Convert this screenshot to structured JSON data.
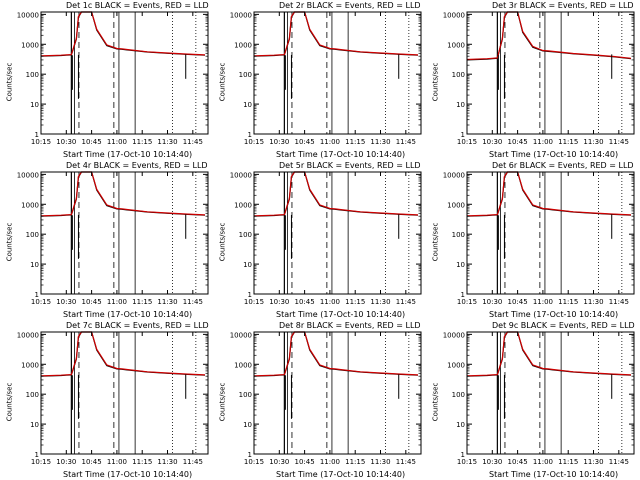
{
  "x_axis_title": "Start Time (17-Oct-10 10:14:40)",
  "y_axis_title": "Counts/sec",
  "x_ticks": [
    "10:15",
    "10:30",
    "10:45",
    "11:00",
    "11:15",
    "11:30",
    "11:45"
  ],
  "y_ticks": [
    "1",
    "10",
    "100",
    "1000",
    "10000"
  ],
  "colors": {
    "events": "#000000",
    "lld": "#cc0000",
    "axes": "#000000"
  },
  "chart_data": [
    {
      "type": "line",
      "title": "Det 1c BLACK = Events, RED = LLD",
      "xlim": [
        10.25,
        11.9
      ],
      "ylim": [
        1,
        12000
      ],
      "ylog": true,
      "series": [
        {
          "name": "Events",
          "x": [
            10.25,
            10.45,
            10.5,
            10.55,
            10.6,
            10.62,
            10.65,
            10.67,
            10.7,
            10.72,
            10.75,
            10.8,
            10.9,
            11.0,
            11.05,
            11.1,
            11.3,
            11.5,
            11.7,
            11.87
          ],
          "y": [
            400,
            420,
            430,
            440,
            1500,
            8000,
            12000,
            12000,
            12000,
            12000,
            12000,
            3000,
            900,
            700,
            680,
            650,
            550,
            500,
            460,
            430
          ]
        },
        {
          "name": "LLD",
          "x": [
            10.25,
            10.45,
            10.5,
            10.55,
            10.6,
            10.62,
            10.65,
            10.67,
            10.7,
            10.72,
            10.75,
            10.8,
            10.9,
            11.0,
            11.05,
            11.1,
            11.3,
            11.5,
            11.7,
            11.87
          ],
          "y": [
            410,
            430,
            440,
            450,
            1600,
            8500,
            12000,
            12000,
            12000,
            12000,
            12000,
            3200,
            950,
            720,
            700,
            670,
            560,
            510,
            470,
            440
          ]
        }
      ]
    },
    {
      "type": "line",
      "title": "Det 2r BLACK = Events, RED = LLD",
      "xlim": [
        10.25,
        11.9
      ],
      "ylim": [
        1,
        12000
      ],
      "ylog": true,
      "series": [
        {
          "name": "Events",
          "x": [
            10.25,
            10.45,
            10.5,
            10.55,
            10.6,
            10.62,
            10.65,
            10.67,
            10.7,
            10.72,
            10.75,
            10.8,
            10.9,
            11.0,
            11.05,
            11.1,
            11.3,
            11.5,
            11.7,
            11.87
          ],
          "y": [
            400,
            420,
            430,
            440,
            1500,
            8000,
            12000,
            12000,
            12000,
            12000,
            12000,
            3000,
            900,
            700,
            680,
            650,
            550,
            500,
            460,
            430
          ]
        },
        {
          "name": "LLD",
          "x": [
            10.25,
            10.45,
            10.5,
            10.55,
            10.6,
            10.62,
            10.65,
            10.67,
            10.7,
            10.72,
            10.75,
            10.8,
            10.9,
            11.0,
            11.05,
            11.1,
            11.3,
            11.5,
            11.7,
            11.87
          ],
          "y": [
            410,
            430,
            440,
            450,
            1600,
            8500,
            12000,
            12000,
            12000,
            12000,
            12000,
            3200,
            950,
            720,
            700,
            670,
            560,
            510,
            470,
            440
          ]
        }
      ]
    },
    {
      "type": "line",
      "title": "Det 3r BLACK = Events, RED = LLD",
      "xlim": [
        10.25,
        11.9
      ],
      "ylim": [
        1,
        12000
      ],
      "ylog": true,
      "series": [
        {
          "name": "Events",
          "x": [
            10.25,
            10.45,
            10.5,
            10.55,
            10.6,
            10.62,
            10.65,
            10.67,
            10.7,
            10.72,
            10.75,
            10.8,
            10.9,
            11.0,
            11.05,
            11.1,
            11.3,
            11.5,
            11.7,
            11.87
          ],
          "y": [
            300,
            320,
            330,
            340,
            1500,
            8000,
            12000,
            12000,
            12000,
            12000,
            12000,
            2500,
            800,
            600,
            580,
            560,
            480,
            430,
            380,
            330
          ]
        },
        {
          "name": "LLD",
          "x": [
            10.25,
            10.45,
            10.5,
            10.55,
            10.6,
            10.62,
            10.65,
            10.67,
            10.7,
            10.72,
            10.75,
            10.8,
            10.9,
            11.0,
            11.05,
            11.1,
            11.3,
            11.5,
            11.7,
            11.87
          ],
          "y": [
            310,
            330,
            340,
            350,
            1600,
            8500,
            12000,
            12000,
            12000,
            12000,
            12000,
            2700,
            850,
            620,
            600,
            580,
            490,
            440,
            390,
            340
          ]
        }
      ]
    },
    {
      "type": "line",
      "title": "Det 4r BLACK = Events, RED = LLD",
      "xlim": [
        10.25,
        11.9
      ],
      "ylim": [
        1,
        12000
      ],
      "ylog": true,
      "series": [
        {
          "name": "Events",
          "x": [
            10.25,
            10.45,
            10.5,
            10.55,
            10.6,
            10.62,
            10.65,
            10.67,
            10.7,
            10.72,
            10.75,
            10.8,
            10.9,
            11.0,
            11.05,
            11.1,
            11.3,
            11.5,
            11.7,
            11.87
          ],
          "y": [
            400,
            420,
            430,
            440,
            1500,
            8000,
            12000,
            12000,
            12000,
            12000,
            12000,
            3000,
            900,
            700,
            680,
            650,
            550,
            500,
            460,
            430
          ]
        },
        {
          "name": "LLD",
          "x": [
            10.25,
            10.45,
            10.5,
            10.55,
            10.6,
            10.62,
            10.65,
            10.67,
            10.7,
            10.72,
            10.75,
            10.8,
            10.9,
            11.0,
            11.05,
            11.1,
            11.3,
            11.5,
            11.7,
            11.87
          ],
          "y": [
            410,
            430,
            440,
            450,
            1600,
            8500,
            12000,
            12000,
            12000,
            12000,
            12000,
            3200,
            950,
            720,
            700,
            670,
            560,
            510,
            470,
            440
          ]
        }
      ]
    },
    {
      "type": "line",
      "title": "Det 5r BLACK = Events, RED = LLD",
      "xlim": [
        10.25,
        11.9
      ],
      "ylim": [
        1,
        12000
      ],
      "ylog": true,
      "series": [
        {
          "name": "Events",
          "x": [
            10.25,
            10.45,
            10.5,
            10.55,
            10.6,
            10.62,
            10.65,
            10.67,
            10.7,
            10.72,
            10.75,
            10.8,
            10.9,
            11.0,
            11.05,
            11.1,
            11.3,
            11.5,
            11.7,
            11.87
          ],
          "y": [
            400,
            420,
            430,
            440,
            1500,
            8000,
            12000,
            12000,
            12000,
            12000,
            12000,
            3000,
            900,
            700,
            680,
            650,
            550,
            500,
            460,
            430
          ]
        },
        {
          "name": "LLD",
          "x": [
            10.25,
            10.45,
            10.5,
            10.55,
            10.6,
            10.62,
            10.65,
            10.67,
            10.7,
            10.72,
            10.75,
            10.8,
            10.9,
            11.0,
            11.05,
            11.1,
            11.3,
            11.5,
            11.7,
            11.87
          ],
          "y": [
            410,
            430,
            440,
            450,
            1600,
            8500,
            12000,
            12000,
            12000,
            12000,
            12000,
            3200,
            950,
            720,
            700,
            670,
            560,
            510,
            470,
            440
          ]
        }
      ]
    },
    {
      "type": "line",
      "title": "Det 6r BLACK = Events, RED = LLD",
      "xlim": [
        10.25,
        11.9
      ],
      "ylim": [
        1,
        12000
      ],
      "ylog": true,
      "series": [
        {
          "name": "Events",
          "x": [
            10.25,
            10.45,
            10.5,
            10.55,
            10.6,
            10.62,
            10.65,
            10.67,
            10.7,
            10.72,
            10.75,
            10.8,
            10.9,
            11.0,
            11.05,
            11.1,
            11.3,
            11.5,
            11.7,
            11.87
          ],
          "y": [
            400,
            420,
            430,
            440,
            1500,
            8000,
            12000,
            12000,
            12000,
            12000,
            12000,
            3000,
            900,
            700,
            680,
            650,
            550,
            500,
            460,
            430
          ]
        },
        {
          "name": "LLD",
          "x": [
            10.25,
            10.45,
            10.5,
            10.55,
            10.6,
            10.62,
            10.65,
            10.67,
            10.7,
            10.72,
            10.75,
            10.8,
            10.9,
            11.0,
            11.05,
            11.1,
            11.3,
            11.5,
            11.7,
            11.87
          ],
          "y": [
            410,
            430,
            440,
            450,
            1600,
            8500,
            12000,
            12000,
            12000,
            12000,
            12000,
            3200,
            950,
            720,
            700,
            670,
            560,
            510,
            470,
            440
          ]
        }
      ]
    },
    {
      "type": "line",
      "title": "Det 7c BLACK = Events, RED = LLD",
      "xlim": [
        10.25,
        11.9
      ],
      "ylim": [
        1,
        12000
      ],
      "ylog": true,
      "series": [
        {
          "name": "Events",
          "x": [
            10.25,
            10.45,
            10.5,
            10.55,
            10.6,
            10.62,
            10.65,
            10.67,
            10.7,
            10.72,
            10.75,
            10.8,
            10.9,
            11.0,
            11.05,
            11.1,
            11.3,
            11.5,
            11.7,
            11.87
          ],
          "y": [
            400,
            420,
            430,
            440,
            1500,
            8000,
            12000,
            12000,
            12000,
            12000,
            12000,
            3000,
            900,
            700,
            680,
            650,
            550,
            500,
            460,
            430
          ]
        },
        {
          "name": "LLD",
          "x": [
            10.25,
            10.45,
            10.5,
            10.55,
            10.6,
            10.62,
            10.65,
            10.67,
            10.7,
            10.72,
            10.75,
            10.8,
            10.9,
            11.0,
            11.05,
            11.1,
            11.3,
            11.5,
            11.7,
            11.87
          ],
          "y": [
            410,
            430,
            440,
            450,
            1600,
            8500,
            12000,
            12000,
            12000,
            12000,
            12000,
            3200,
            950,
            720,
            700,
            670,
            560,
            510,
            470,
            440
          ]
        }
      ]
    },
    {
      "type": "line",
      "title": "Det 8r BLACK = Events, RED = LLD",
      "xlim": [
        10.25,
        11.9
      ],
      "ylim": [
        1,
        12000
      ],
      "ylog": true,
      "series": [
        {
          "name": "Events",
          "x": [
            10.25,
            10.45,
            10.5,
            10.55,
            10.6,
            10.62,
            10.65,
            10.67,
            10.7,
            10.72,
            10.75,
            10.8,
            10.9,
            11.0,
            11.05,
            11.1,
            11.3,
            11.5,
            11.7,
            11.87
          ],
          "y": [
            400,
            420,
            430,
            440,
            1500,
            8000,
            12000,
            12000,
            12000,
            12000,
            12000,
            3000,
            900,
            700,
            680,
            650,
            550,
            500,
            460,
            430
          ]
        },
        {
          "name": "LLD",
          "x": [
            10.25,
            10.45,
            10.5,
            10.55,
            10.6,
            10.62,
            10.65,
            10.67,
            10.7,
            10.72,
            10.75,
            10.8,
            10.9,
            11.0,
            11.05,
            11.1,
            11.3,
            11.5,
            11.7,
            11.87
          ],
          "y": [
            410,
            430,
            440,
            450,
            1600,
            8500,
            12000,
            12000,
            12000,
            12000,
            12000,
            3200,
            950,
            720,
            700,
            670,
            560,
            510,
            470,
            440
          ]
        }
      ]
    },
    {
      "type": "line",
      "title": "Det 9c BLACK = Events, RED = LLD",
      "xlim": [
        10.25,
        11.9
      ],
      "ylim": [
        1,
        12000
      ],
      "ylog": true,
      "series": [
        {
          "name": "Events",
          "x": [
            10.25,
            10.45,
            10.5,
            10.55,
            10.6,
            10.62,
            10.65,
            10.67,
            10.7,
            10.72,
            10.75,
            10.8,
            10.9,
            11.0,
            11.05,
            11.1,
            11.3,
            11.5,
            11.7,
            11.87
          ],
          "y": [
            400,
            420,
            430,
            440,
            1500,
            8000,
            12000,
            12000,
            12000,
            12000,
            12000,
            3000,
            900,
            700,
            680,
            650,
            550,
            500,
            460,
            430
          ]
        },
        {
          "name": "LLD",
          "x": [
            10.25,
            10.45,
            10.5,
            10.55,
            10.6,
            10.62,
            10.65,
            10.67,
            10.7,
            10.72,
            10.75,
            10.8,
            10.9,
            11.0,
            11.05,
            11.1,
            11.3,
            11.5,
            11.7,
            11.87
          ],
          "y": [
            410,
            430,
            440,
            450,
            1600,
            8500,
            12000,
            12000,
            12000,
            12000,
            12000,
            3200,
            950,
            720,
            700,
            670,
            560,
            510,
            470,
            440
          ]
        }
      ]
    }
  ]
}
